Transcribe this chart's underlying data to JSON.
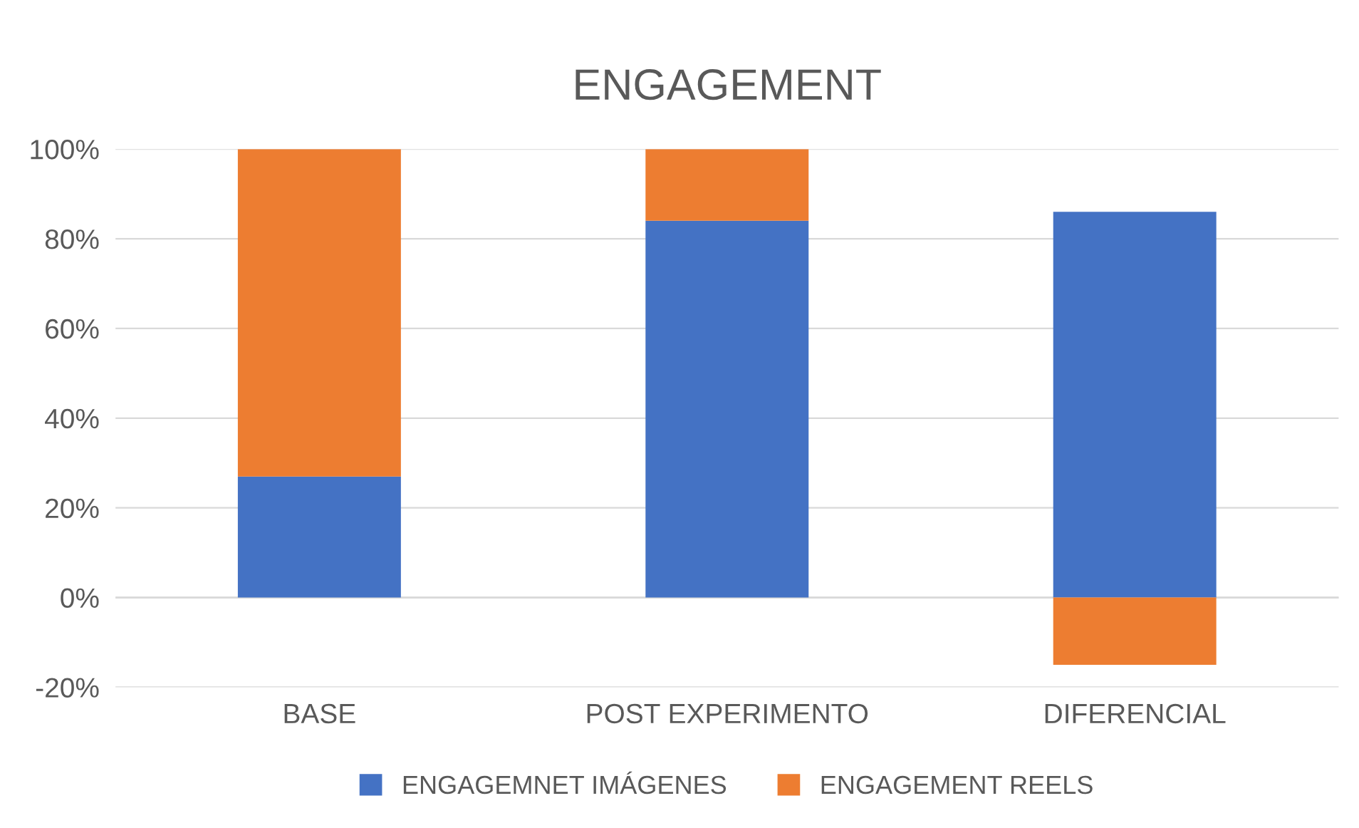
{
  "chart_data": {
    "type": "bar",
    "title": "ENGAGEMENT",
    "stacked": true,
    "categories": [
      "BASE",
      "POST EXPERIMENTO",
      "DIFERENCIAL"
    ],
    "series": [
      {
        "name": "ENGAGEMNET IMÁGENES",
        "color": "#4472c4",
        "values": [
          27,
          84,
          86
        ]
      },
      {
        "name": "ENGAGEMENT REELS",
        "color": "#ed7d31",
        "values": [
          73,
          16,
          -15
        ]
      }
    ],
    "ylim": [
      -20,
      100
    ],
    "yticks": [
      {
        "value": -20,
        "label": "-20%"
      },
      {
        "value": 0,
        "label": "0%"
      },
      {
        "value": 20,
        "label": "20%"
      },
      {
        "value": 40,
        "label": "40%"
      },
      {
        "value": 60,
        "label": "60%"
      },
      {
        "value": 80,
        "label": "80%"
      },
      {
        "value": 100,
        "label": "100%"
      }
    ],
    "grid": "y",
    "legend": "bottom"
  }
}
